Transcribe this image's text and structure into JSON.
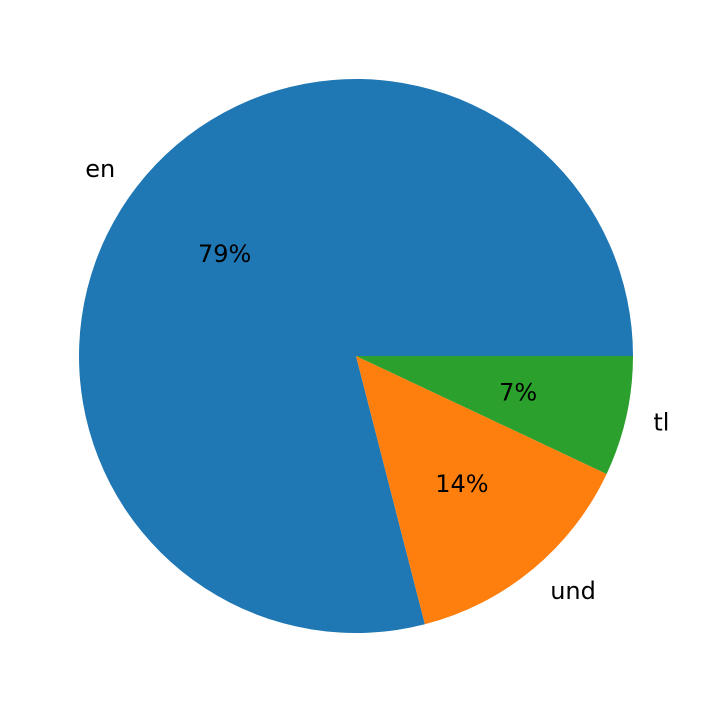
{
  "chart_data": {
    "type": "pie",
    "labels": [
      "en",
      "und",
      "tl"
    ],
    "values": [
      79,
      14,
      7
    ],
    "pct_labels": [
      "79%",
      "14%",
      "7%"
    ],
    "colors": [
      "#1f77b4",
      "#ff7f0e",
      "#2ca02c"
    ],
    "start_angle": 0,
    "direction": "counterclockwise",
    "title": ""
  }
}
